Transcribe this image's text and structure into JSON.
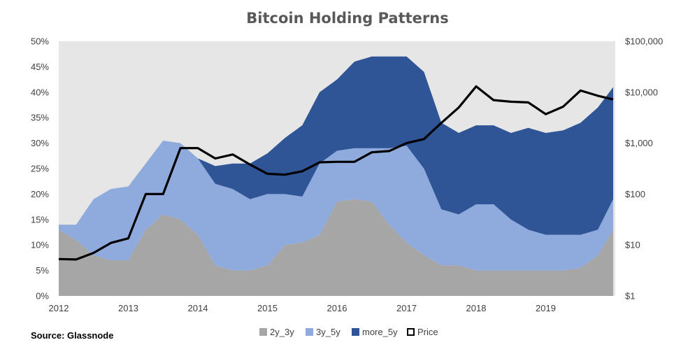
{
  "chart_data": {
    "type": "area",
    "title": "Bitcoin Holding Patterns",
    "source": "Source: Glassnode",
    "stacked": true,
    "grid": false,
    "legend_position": "bottom",
    "x_ticks": [
      "2012",
      "2013",
      "2014",
      "2015",
      "2016",
      "2017",
      "2018",
      "2019"
    ],
    "xlim": [
      2012,
      2020
    ],
    "y_left": {
      "ticks": [
        "0%",
        "5%",
        "10%",
        "15%",
        "20%",
        "25%",
        "30%",
        "35%",
        "40%",
        "45%",
        "50%"
      ],
      "ylim": [
        0,
        50
      ],
      "unit": "%"
    },
    "y_right": {
      "scale": "log",
      "ticks": [
        "$1",
        "$10",
        "$100",
        "$1,000",
        "$10,000",
        "$100,000"
      ],
      "ylim": [
        1,
        100000
      ]
    },
    "x": [
      2012.0,
      2012.25,
      2012.5,
      2012.75,
      2013.0,
      2013.25,
      2013.5,
      2013.75,
      2014.0,
      2014.25,
      2014.5,
      2014.75,
      2015.0,
      2015.25,
      2015.5,
      2015.75,
      2016.0,
      2016.25,
      2016.5,
      2016.75,
      2017.0,
      2017.25,
      2017.5,
      2017.75,
      2018.0,
      2018.25,
      2018.5,
      2018.75,
      2019.0,
      2019.25,
      2019.5,
      2019.75,
      2019.97
    ],
    "series": [
      {
        "name": "2y_3y",
        "color": "#a6a6a6",
        "values": [
          13,
          11,
          8,
          7,
          7,
          13,
          16,
          15,
          12,
          6,
          5,
          5,
          6,
          10,
          10.5,
          12,
          18.5,
          19,
          18.5,
          14,
          10.5,
          8,
          6,
          6,
          5,
          5,
          5,
          5,
          5,
          5,
          5.5,
          8,
          13
        ]
      },
      {
        "name": "3y_5y",
        "color": "#8faadc",
        "values": [
          1,
          3,
          11,
          14,
          14.5,
          13,
          14.5,
          15,
          15,
          16,
          16,
          14,
          14,
          10,
          9,
          14,
          10,
          10,
          10.5,
          15,
          19,
          17,
          11,
          10,
          13,
          13,
          10,
          8,
          7,
          7,
          6.5,
          5,
          6
        ]
      },
      {
        "name": "more_5y",
        "color": "#2f5597",
        "values": [
          0,
          0,
          0,
          0,
          0,
          0,
          0,
          0,
          0,
          3.5,
          5,
          7,
          8,
          11,
          14,
          14,
          14,
          17,
          18,
          18,
          17.5,
          19,
          17,
          16,
          15.5,
          15.5,
          17,
          20,
          20,
          20.5,
          22,
          24,
          22
        ]
      },
      {
        "name": "Price",
        "color": "#000000",
        "axis": "right",
        "values": [
          5.3,
          5.2,
          7,
          11,
          13.5,
          100,
          100,
          800,
          800,
          500,
          600,
          380,
          250,
          240,
          280,
          420,
          430,
          430,
          660,
          700,
          1000,
          1200,
          2500,
          5000,
          13000,
          7000,
          6500,
          6300,
          3700,
          5200,
          10800,
          8500,
          7200
        ]
      }
    ]
  }
}
